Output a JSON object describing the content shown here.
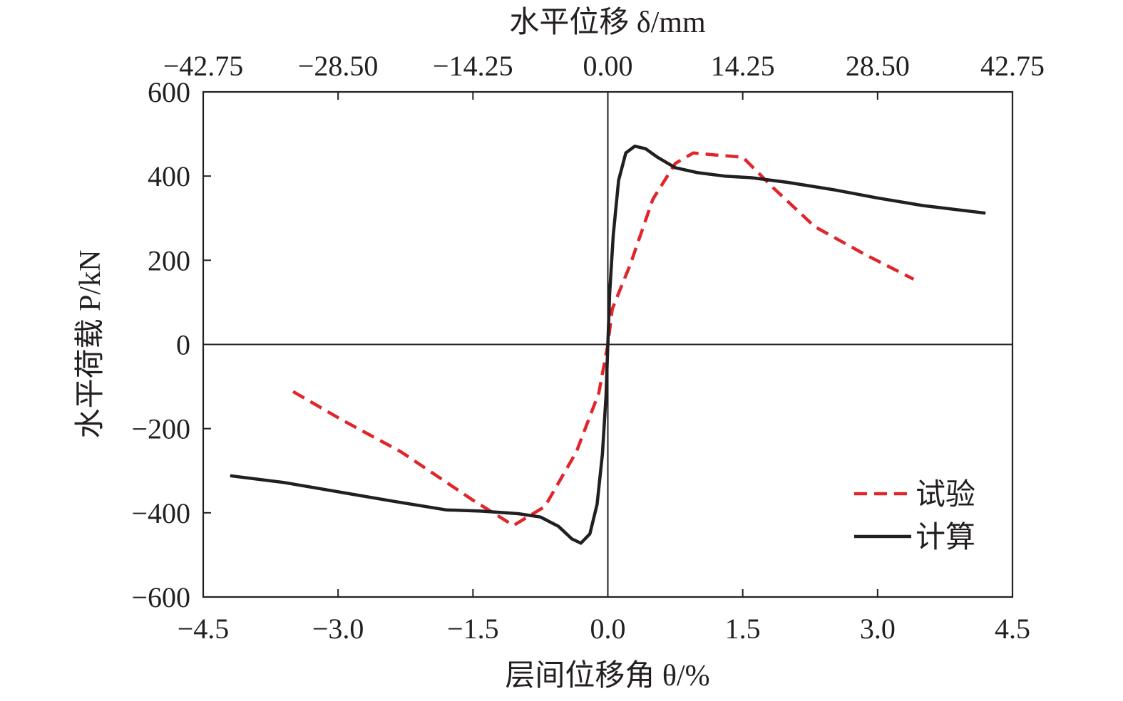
{
  "chart_data": {
    "type": "line",
    "xlabel": "层间位移角 θ/%",
    "x2label": "水平位移 δ/mm",
    "ylabel": "水平荷载 P/kN",
    "xlim": [
      -4.5,
      4.5
    ],
    "ylim": [
      -600,
      600
    ],
    "x_ticks": [
      -4.5,
      -3.0,
      -1.5,
      0.0,
      1.5,
      3.0,
      4.5
    ],
    "x_tick_labels": [
      "−4.5",
      "−3.0",
      "−1.5",
      "0.0",
      "1.5",
      "3.0",
      "4.5"
    ],
    "x2_ticks": [
      -4.5,
      -3.0,
      -1.5,
      0.0,
      1.5,
      3.0,
      4.5
    ],
    "x2_tick_labels": [
      "−42.75",
      "−28.50",
      "−14.25",
      "0.00",
      "14.25",
      "28.50",
      "42.75"
    ],
    "y_ticks": [
      -600,
      -400,
      -200,
      0,
      200,
      400,
      600
    ],
    "y_tick_labels": [
      "−600",
      "−400",
      "−200",
      "0",
      "200",
      "400",
      "600"
    ],
    "grid": false,
    "legend_position": "bottom-right",
    "series": [
      {
        "name": "试验",
        "color": "#e0262b",
        "style": "dashed",
        "points": [
          [
            -3.5,
            -112
          ],
          [
            -2.95,
            -180
          ],
          [
            -2.3,
            -255
          ],
          [
            -1.5,
            -370
          ],
          [
            -1.05,
            -430
          ],
          [
            -0.7,
            -385
          ],
          [
            -0.35,
            -255
          ],
          [
            -0.1,
            -115
          ],
          [
            0.0,
            0
          ],
          [
            0.05,
            85
          ],
          [
            0.25,
            190
          ],
          [
            0.5,
            345
          ],
          [
            0.75,
            430
          ],
          [
            0.95,
            455
          ],
          [
            1.2,
            450
          ],
          [
            1.5,
            445
          ],
          [
            1.85,
            370
          ],
          [
            2.3,
            280
          ],
          [
            2.85,
            215
          ],
          [
            3.4,
            155
          ]
        ]
      },
      {
        "name": "计算",
        "color": "#231f20",
        "style": "solid",
        "points": [
          [
            -4.2,
            -312
          ],
          [
            -3.6,
            -328
          ],
          [
            -3.0,
            -350
          ],
          [
            -2.4,
            -372
          ],
          [
            -1.8,
            -393
          ],
          [
            -1.4,
            -396
          ],
          [
            -1.0,
            -402
          ],
          [
            -0.75,
            -410
          ],
          [
            -0.55,
            -432
          ],
          [
            -0.4,
            -462
          ],
          [
            -0.3,
            -472
          ],
          [
            -0.2,
            -450
          ],
          [
            -0.12,
            -380
          ],
          [
            -0.06,
            -260
          ],
          [
            -0.02,
            -120
          ],
          [
            0.0,
            0
          ],
          [
            0.02,
            120
          ],
          [
            0.06,
            260
          ],
          [
            0.12,
            390
          ],
          [
            0.2,
            455
          ],
          [
            0.3,
            471
          ],
          [
            0.42,
            465
          ],
          [
            0.55,
            445
          ],
          [
            0.75,
            420
          ],
          [
            1.0,
            408
          ],
          [
            1.3,
            400
          ],
          [
            1.6,
            396
          ],
          [
            2.0,
            385
          ],
          [
            2.5,
            368
          ],
          [
            3.0,
            348
          ],
          [
            3.5,
            330
          ],
          [
            4.2,
            312
          ]
        ]
      }
    ]
  }
}
